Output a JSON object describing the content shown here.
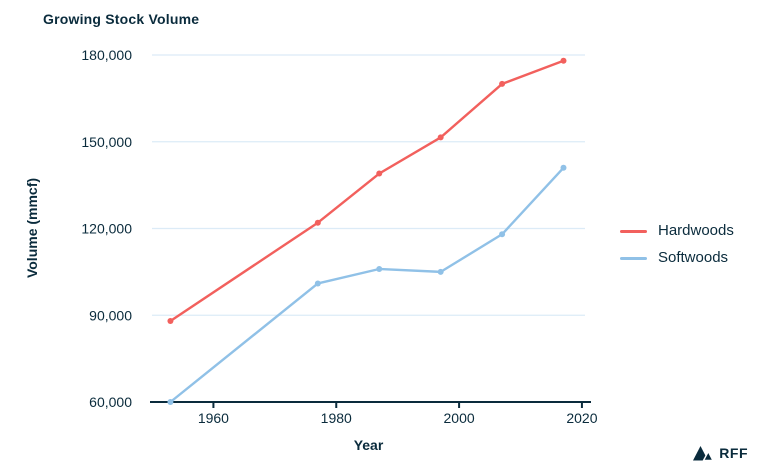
{
  "chart_data": {
    "type": "line",
    "title": "Growing Stock Volume",
    "xlabel": "Year",
    "ylabel": "Volume (mmcf)",
    "x": [
      1953,
      1977,
      1987,
      1997,
      2007,
      2017
    ],
    "series": [
      {
        "name": "Hardwoods",
        "color": "#f2605d",
        "values": [
          88000,
          122000,
          139000,
          151500,
          170000,
          178000
        ]
      },
      {
        "name": "Softwoods",
        "color": "#90c1e7",
        "values": [
          60000,
          101000,
          106000,
          105000,
          118000,
          141000
        ]
      }
    ],
    "xlim": [
      1950,
      2020.5
    ],
    "ylim": [
      60000,
      180000
    ],
    "xticks": [
      1960,
      1980,
      2000,
      2020
    ],
    "yticks": [
      60000,
      90000,
      120000,
      150000,
      180000
    ],
    "ytick_labels": [
      "60,000",
      "90,000",
      "120,000",
      "150,000",
      "180,000"
    ],
    "grid": "horizontal-only",
    "legend_position": "right-middle",
    "marker": "circle"
  },
  "legend": {
    "items": [
      "Hardwoods",
      "Softwoods"
    ]
  },
  "branding": {
    "logo_text": "RFF",
    "logo_icon": "mountains-icon"
  },
  "colors": {
    "text": "#0a2b3c",
    "axis": "#0a2b3c",
    "gridline": "#dcebf7",
    "hardwoods": "#f2605d",
    "softwoods": "#90c1e7",
    "background": "#ffffff"
  }
}
